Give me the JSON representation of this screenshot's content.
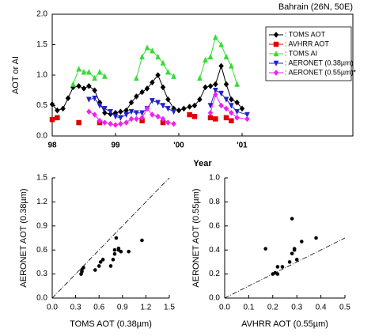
{
  "chart_data": [
    {
      "type": "line",
      "title": "Bahrain (26N, 50E)",
      "xlabel": "Year",
      "ylabel": "AOT or AI",
      "xlim": [
        1998,
        2002.75
      ],
      "xticks": [
        {
          "value": 1998,
          "label": "98"
        },
        {
          "value": 1999,
          "label": "99"
        },
        {
          "value": 2000,
          "label": "'00"
        },
        {
          "value": 2001,
          "label": "'01"
        }
      ],
      "ylim": [
        0,
        2
      ],
      "yticks": [
        {
          "value": 0,
          "label": "0.0"
        },
        0.5,
        {
          "value": 1,
          "label": "1.0"
        },
        1.5,
        {
          "value": 2,
          "label": "2.0"
        }
      ],
      "legend": "upper right",
      "series": [
        {
          "name": ": TOMS AOT",
          "color": "#000000",
          "marker": "diamond",
          "connect": true,
          "x": [
            1998.0,
            1998.08,
            1998.17,
            1998.25,
            1998.33,
            1998.42,
            1998.5,
            1998.58,
            1998.67,
            1998.75,
            1998.83,
            1998.92,
            1999.0,
            1999.08,
            1999.17,
            1999.25,
            1999.33,
            1999.42,
            1999.5,
            1999.58,
            1999.67,
            1999.75,
            1999.83,
            1999.92,
            2000.0,
            2000.08,
            2000.17,
            2000.25,
            2000.33,
            2000.42,
            2000.5,
            2000.58,
            2000.67,
            2000.75,
            2000.83,
            2000.92,
            2001.0
          ],
          "values": [
            0.52,
            0.42,
            0.45,
            0.62,
            0.8,
            0.82,
            0.78,
            0.82,
            0.75,
            0.55,
            0.38,
            0.36,
            0.38,
            0.4,
            0.42,
            0.55,
            0.65,
            0.72,
            0.78,
            0.88,
            1.0,
            0.8,
            0.6,
            0.45,
            0.42,
            0.45,
            0.48,
            0.5,
            0.6,
            0.8,
            0.82,
            0.85,
            1.15,
            0.85,
            0.6,
            0.55,
            0.45
          ]
        },
        {
          "name": ": AVHRR AOT",
          "color": "#e00000",
          "marker": "square",
          "connect": false,
          "x": [
            1998.0,
            1998.08,
            1998.42,
            1998.75,
            1999.42,
            1999.75,
            2000.17,
            2000.25,
            2000.5,
            2000.58,
            2000.75,
            2000.83
          ],
          "values": [
            0.27,
            0.3,
            0.22,
            0.22,
            0.25,
            0.22,
            0.35,
            0.32,
            0.3,
            0.28,
            0.3,
            0.25
          ]
        },
        {
          "name": ": TOMS AI",
          "color": "#33dd33",
          "marker": "triangle-up",
          "connect": true,
          "x": [
            1998.33,
            1998.42,
            1998.5,
            1998.58,
            1998.67,
            1998.75,
            1998.83,
            1999.0,
            1999.33,
            1999.42,
            1999.5,
            1999.58,
            1999.67,
            1999.75,
            1999.83,
            1999.92,
            2000.0,
            2000.33,
            2000.42,
            2000.5,
            2000.58,
            2000.67,
            2000.75,
            2000.83,
            2000.92
          ],
          "values": [
            0.85,
            1.1,
            1.05,
            1.05,
            0.95,
            1.05,
            0.98,
            null,
            0.95,
            1.3,
            1.45,
            1.4,
            1.3,
            1.2,
            1.05,
            0.98,
            null,
            0.95,
            1.25,
            1.3,
            1.62,
            1.5,
            1.3,
            1.15,
            0.85
          ]
        },
        {
          "name": ": AERONET (0.38µm)",
          "color": "#2222cc",
          "marker": "triangle-down",
          "connect": true,
          "x": [
            1998.58,
            1998.67,
            1998.75,
            1998.83,
            1998.92,
            1999.0,
            1999.08,
            1999.17,
            1999.25,
            1999.33,
            1999.42,
            1999.5,
            1999.58,
            1999.67,
            1999.75,
            1999.83,
            1999.92,
            2000.2,
            2000.5,
            2000.58,
            2000.67,
            2000.75,
            2000.83,
            2000.92,
            2001.08
          ],
          "values": [
            0.6,
            0.62,
            0.5,
            0.45,
            0.4,
            0.32,
            0.3,
            0.35,
            0.4,
            0.38,
            0.38,
            0.45,
            0.58,
            0.55,
            0.5,
            0.45,
            0.4,
            null,
            0.5,
            0.75,
            0.7,
            0.6,
            0.5,
            0.4,
            0.35
          ]
        },
        {
          "name": ": AERONET (0.55µm)*",
          "color": "#ee22ee",
          "marker": "diamond",
          "connect": true,
          "x": [
            1998.58,
            1998.67,
            1998.75,
            1998.83,
            1998.92,
            1999.0,
            1999.08,
            1999.17,
            1999.25,
            1999.33,
            1999.42,
            1999.5,
            1999.58,
            1999.67,
            1999.75,
            1999.83,
            1999.92,
            2000.2,
            2000.5,
            2000.58,
            2000.67,
            2000.75,
            2000.83,
            2000.92,
            2001.08
          ],
          "values": [
            0.4,
            0.35,
            0.25,
            0.22,
            0.2,
            0.18,
            0.2,
            0.22,
            0.28,
            0.28,
            0.3,
            0.45,
            0.35,
            0.32,
            0.28,
            0.22,
            0.2,
            null,
            0.38,
            0.68,
            0.5,
            0.45,
            0.38,
            0.3,
            0.28
          ]
        }
      ]
    },
    {
      "type": "scatter",
      "xlabel": "TOMS AOT (0.38µm)",
      "ylabel": "AERONET AOT (0.38µm)",
      "xlim": [
        0,
        1.5
      ],
      "xticks": [
        {
          "value": 0,
          "label": "0.0"
        },
        0.3,
        0.6,
        0.9,
        1.2,
        1.5
      ],
      "ylim": [
        0,
        1.5
      ],
      "yticks": [
        {
          "value": 0,
          "label": "0.0"
        },
        0.3,
        0.6,
        0.9,
        1.2,
        1.5
      ],
      "reference_line": {
        "slope": 1,
        "intercept": 0
      },
      "color": "#000000",
      "x": [
        0.37,
        0.38,
        0.38,
        0.4,
        0.55,
        0.6,
        0.62,
        0.65,
        0.75,
        0.78,
        0.8,
        0.8,
        0.82,
        0.85,
        0.85,
        0.88,
        0.98,
        1.15
      ],
      "values": [
        0.3,
        0.33,
        0.35,
        0.38,
        0.35,
        0.4,
        0.45,
        0.48,
        0.4,
        0.48,
        0.55,
        0.6,
        0.75,
        0.6,
        0.62,
        0.58,
        0.58,
        0.72
      ]
    },
    {
      "type": "scatter",
      "xlabel": "AVHRR AOT (0.55µm)",
      "ylabel": "AERONET AOT (0.55µm)",
      "xlim": [
        0,
        0.5
      ],
      "xticks": [
        {
          "value": 0,
          "label": "0.0"
        },
        0.1,
        0.2,
        0.3,
        0.4,
        0.5
      ],
      "ylim": [
        0,
        1
      ],
      "yticks": [
        {
          "value": 0,
          "label": "0.0"
        },
        0.2,
        0.4,
        0.6,
        0.8,
        {
          "value": 1,
          "label": "1.0"
        }
      ],
      "reference_line": {
        "slope": 1,
        "intercept": 0
      },
      "color": "#000000",
      "x": [
        0.17,
        0.2,
        0.21,
        0.22,
        0.22,
        0.24,
        0.27,
        0.28,
        0.28,
        0.29,
        0.29,
        0.3,
        0.32,
        0.38
      ],
      "values": [
        0.41,
        0.2,
        0.21,
        0.2,
        0.26,
        0.26,
        0.3,
        0.37,
        0.66,
        0.41,
        0.4,
        0.32,
        0.47,
        0.5
      ]
    }
  ]
}
